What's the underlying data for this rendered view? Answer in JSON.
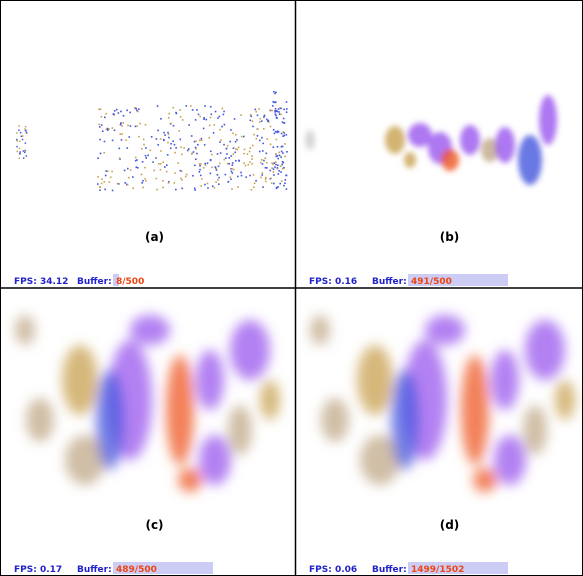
{
  "panels": [
    {
      "label": "(a)",
      "fps": "FPS: 34.12",
      "buffer_label": "Buffer:",
      "buffer": "8/500"
    },
    {
      "label": "(b)",
      "fps": "FPS: 0.16",
      "buffer_label": "Buffer:",
      "buffer": "491/500"
    },
    {
      "label": "(c)",
      "fps": "FPS: 0.17",
      "buffer_label": "Buffer:",
      "buffer": "489/500"
    },
    {
      "label": "(d)",
      "fps": "FPS: 0.06",
      "buffer_label": "Buffer:",
      "buffer": "1499/1502"
    }
  ]
}
